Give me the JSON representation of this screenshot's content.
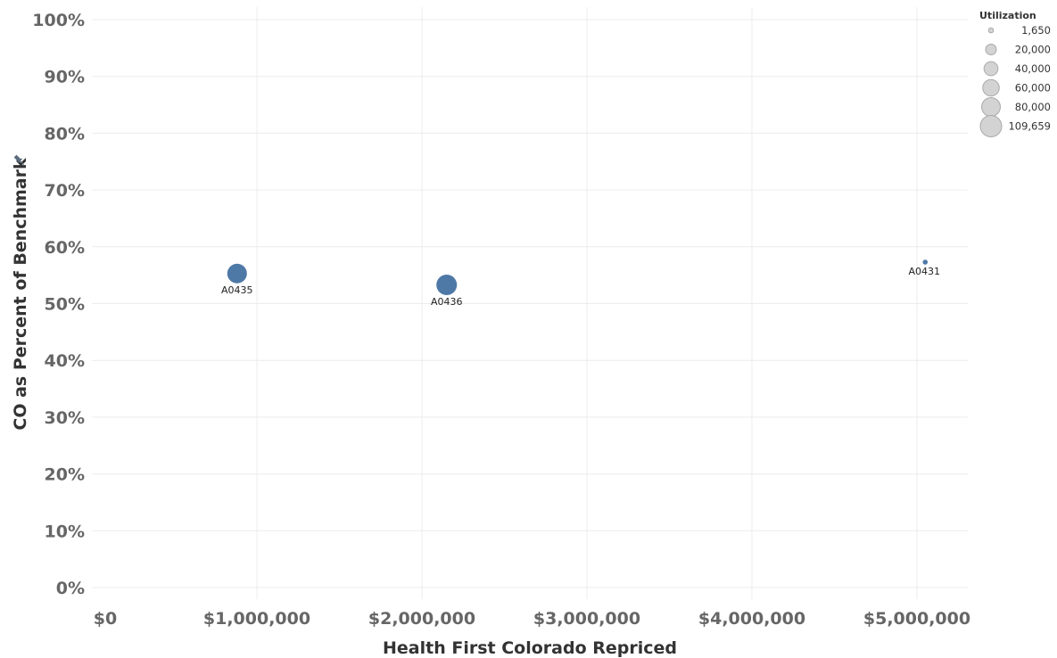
{
  "chart_data": {
    "type": "scatter",
    "xlabel": "Health First Colorado Repriced",
    "ylabel": "CO as Percent of Benchmark",
    "xlim": [
      0,
      5300000
    ],
    "ylim": [
      0,
      1.0
    ],
    "x_ticks": [
      0,
      1000000,
      2000000,
      3000000,
      4000000,
      5000000
    ],
    "x_tick_labels": [
      "$0",
      "$1,000,000",
      "$2,000,000",
      "$3,000,000",
      "$4,000,000",
      "$5,000,000"
    ],
    "y_ticks": [
      0,
      0.1,
      0.2,
      0.3,
      0.4,
      0.5,
      0.6,
      0.7,
      0.8,
      0.9,
      1.0
    ],
    "y_tick_labels": [
      "0%",
      "10%",
      "20%",
      "30%",
      "40%",
      "50%",
      "60%",
      "70%",
      "80%",
      "90%",
      "100%"
    ],
    "grid": true,
    "points": [
      {
        "label": "A0435",
        "x": 880000,
        "y": 0.553,
        "utilization": 90000
      },
      {
        "label": "A0436",
        "x": 2150000,
        "y": 0.533,
        "utilization": 100000
      },
      {
        "label": "A0431",
        "x": 5050000,
        "y": 0.573,
        "utilization": 1650
      }
    ],
    "legend": {
      "title": "Utilization",
      "position": "top-right",
      "entries": [
        {
          "label": "1,650",
          "value": 1650
        },
        {
          "label": "20,000",
          "value": 20000
        },
        {
          "label": "40,000",
          "value": 40000
        },
        {
          "label": "60,000",
          "value": 60000
        },
        {
          "label": "80,000",
          "value": 80000
        },
        {
          "label": "109,659",
          "value": 109659
        }
      ]
    },
    "colors": {
      "point": "#4e79a7",
      "legend_fill": "#d3d3d3",
      "legend_stroke": "#a9a9a9",
      "grid": "#ececec",
      "axis_icon": "#5a6b7d"
    }
  }
}
